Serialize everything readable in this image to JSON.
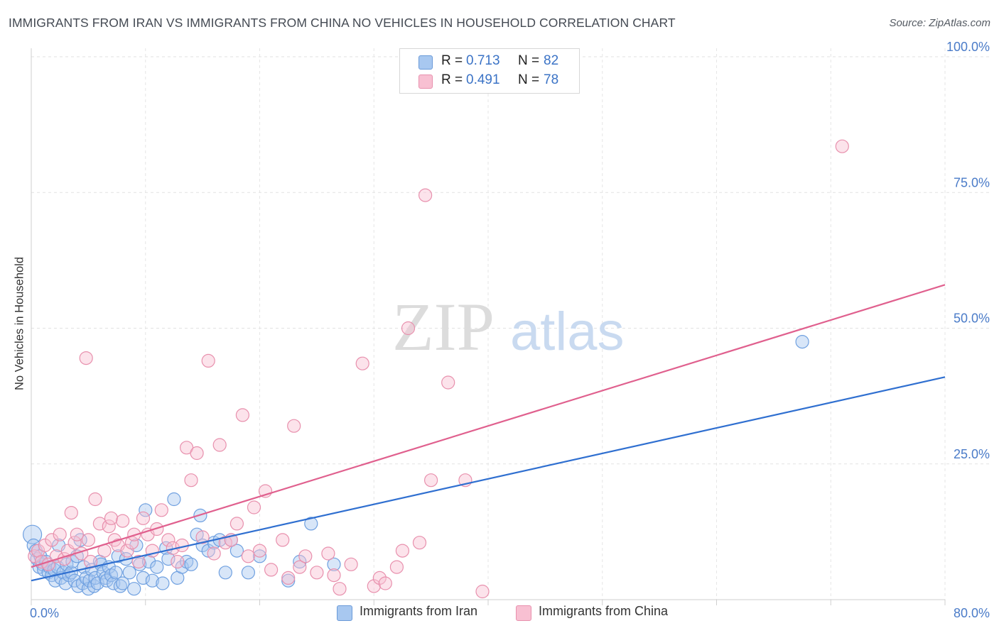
{
  "title": "IMMIGRANTS FROM IRAN VS IMMIGRANTS FROM CHINA NO VEHICLES IN HOUSEHOLD CORRELATION CHART",
  "source": "Source: ZipAtlas.com",
  "watermark": {
    "zip": "ZIP",
    "atlas": "atlas"
  },
  "legend_top": [
    {
      "r_label": "R =",
      "r_value": "0.713",
      "n_label": "N =",
      "n_value": "82",
      "color": "#a8c8f0",
      "border": "#6a9ad8"
    },
    {
      "r_label": "R =",
      "r_value": "0.491",
      "n_label": "N =",
      "n_value": "78",
      "color": "#f8c0d2",
      "border": "#e890ad"
    }
  ],
  "chart_data": {
    "type": "scatter",
    "title": "IMMIGRANTS FROM IRAN VS IMMIGRANTS FROM CHINA NO VEHICLES IN HOUSEHOLD CORRELATION CHART",
    "xlabel": "",
    "ylabel": "No Vehicles in Household",
    "xlim": [
      0,
      80
    ],
    "ylim": [
      0,
      100
    ],
    "x_tick_labels": [
      "0.0%",
      "80.0%"
    ],
    "y_tick_labels": [
      "25.0%",
      "50.0%",
      "75.0%",
      "100.0%"
    ],
    "y_ticks": [
      25,
      50,
      75,
      100
    ],
    "grid": true,
    "legend_position": "bottom",
    "series": [
      {
        "name": "Immigrants from Iran",
        "color": "#6fa0e0",
        "fill": "#a8c8f0",
        "line_color": "#2f6fd0",
        "trend": [
          [
            0,
            3.5
          ],
          [
            80,
            41
          ]
        ],
        "points": [
          [
            0.1,
            12
          ],
          [
            0.2,
            10
          ],
          [
            0.4,
            9
          ],
          [
            0.5,
            7.5
          ],
          [
            0.7,
            6
          ],
          [
            0.8,
            8
          ],
          [
            1.0,
            6.5
          ],
          [
            1.1,
            5.5
          ],
          [
            1.3,
            7
          ],
          [
            1.5,
            5
          ],
          [
            1.6,
            6
          ],
          [
            1.8,
            4.5
          ],
          [
            2.0,
            5.5
          ],
          [
            2.1,
            3.5
          ],
          [
            2.3,
            6
          ],
          [
            2.4,
            10
          ],
          [
            2.6,
            4
          ],
          [
            2.8,
            5
          ],
          [
            3.0,
            3
          ],
          [
            3.1,
            6.5
          ],
          [
            3.3,
            4.5
          ],
          [
            3.5,
            5
          ],
          [
            3.6,
            7
          ],
          [
            3.8,
            3.5
          ],
          [
            4.0,
            8
          ],
          [
            4.1,
            2.5
          ],
          [
            4.3,
            11
          ],
          [
            4.5,
            3
          ],
          [
            4.6,
            6
          ],
          [
            4.8,
            4
          ],
          [
            5.0,
            2
          ],
          [
            5.1,
            3.5
          ],
          [
            5.3,
            5.5
          ],
          [
            5.5,
            2.5
          ],
          [
            5.6,
            4
          ],
          [
            5.8,
            3
          ],
          [
            6.0,
            7
          ],
          [
            6.1,
            6.5
          ],
          [
            6.3,
            5
          ],
          [
            6.5,
            4
          ],
          [
            6.6,
            3.5
          ],
          [
            6.8,
            6
          ],
          [
            7.0,
            4.5
          ],
          [
            7.2,
            3
          ],
          [
            7.4,
            5
          ],
          [
            7.6,
            8
          ],
          [
            7.8,
            2.5
          ],
          [
            8.0,
            3
          ],
          [
            8.3,
            7.5
          ],
          [
            8.6,
            5
          ],
          [
            9.0,
            2
          ],
          [
            9.2,
            10
          ],
          [
            9.5,
            6.5
          ],
          [
            9.8,
            4
          ],
          [
            10.0,
            16.5
          ],
          [
            10.3,
            7
          ],
          [
            10.6,
            3.5
          ],
          [
            11.0,
            6
          ],
          [
            11.5,
            3
          ],
          [
            11.8,
            9.5
          ],
          [
            12.0,
            7.5
          ],
          [
            12.5,
            18.5
          ],
          [
            12.8,
            4
          ],
          [
            13.2,
            6
          ],
          [
            13.6,
            7
          ],
          [
            14.0,
            6.5
          ],
          [
            14.5,
            12
          ],
          [
            14.8,
            15.5
          ],
          [
            15.0,
            10
          ],
          [
            15.5,
            9
          ],
          [
            16.0,
            10.5
          ],
          [
            16.5,
            11
          ],
          [
            17.0,
            5
          ],
          [
            17.5,
            11
          ],
          [
            18.0,
            9
          ],
          [
            19.0,
            5
          ],
          [
            20.0,
            8
          ],
          [
            22.5,
            3.5
          ],
          [
            23.5,
            7
          ],
          [
            24.5,
            14
          ],
          [
            26.5,
            6.5
          ],
          [
            67.5,
            47.5
          ]
        ]
      },
      {
        "name": "Immigrants from China",
        "color": "#e890ad",
        "fill": "#f8c0d2",
        "line_color": "#e0608e",
        "trend": [
          [
            0,
            6
          ],
          [
            80,
            58
          ]
        ],
        "points": [
          [
            0.3,
            8
          ],
          [
            0.6,
            9
          ],
          [
            0.9,
            7
          ],
          [
            1.2,
            10
          ],
          [
            1.5,
            6.5
          ],
          [
            1.8,
            11
          ],
          [
            2.2,
            8
          ],
          [
            2.5,
            12
          ],
          [
            2.9,
            7.5
          ],
          [
            3.2,
            9
          ],
          [
            3.5,
            16
          ],
          [
            3.8,
            10.5
          ],
          [
            4.0,
            12
          ],
          [
            4.4,
            8.5
          ],
          [
            4.8,
            44.5
          ],
          [
            5.0,
            11
          ],
          [
            5.2,
            7
          ],
          [
            5.6,
            18.5
          ],
          [
            6.0,
            14
          ],
          [
            6.4,
            9
          ],
          [
            6.8,
            13.5
          ],
          [
            7.0,
            15
          ],
          [
            7.3,
            11
          ],
          [
            7.6,
            10
          ],
          [
            8.0,
            14.5
          ],
          [
            8.4,
            9
          ],
          [
            8.8,
            10.5
          ],
          [
            9.0,
            12
          ],
          [
            9.4,
            7
          ],
          [
            9.8,
            15
          ],
          [
            10.2,
            12
          ],
          [
            10.6,
            9
          ],
          [
            11.0,
            13
          ],
          [
            11.4,
            16.5
          ],
          [
            12.0,
            11
          ],
          [
            12.4,
            9.5
          ],
          [
            12.8,
            7
          ],
          [
            13.2,
            10
          ],
          [
            13.6,
            28
          ],
          [
            14.0,
            22
          ],
          [
            14.5,
            27
          ],
          [
            15.0,
            11.5
          ],
          [
            15.5,
            44
          ],
          [
            16.0,
            8.5
          ],
          [
            16.5,
            28.5
          ],
          [
            17.0,
            10.5
          ],
          [
            17.5,
            11
          ],
          [
            18.0,
            14
          ],
          [
            18.5,
            34
          ],
          [
            19.0,
            8
          ],
          [
            19.5,
            17
          ],
          [
            20.0,
            9
          ],
          [
            20.5,
            20
          ],
          [
            21.0,
            5.5
          ],
          [
            22.0,
            11
          ],
          [
            22.5,
            4
          ],
          [
            23.0,
            32
          ],
          [
            23.5,
            6
          ],
          [
            24.0,
            8
          ],
          [
            25.0,
            5
          ],
          [
            26.0,
            8.5
          ],
          [
            26.5,
            4.5
          ],
          [
            27.0,
            2
          ],
          [
            28.0,
            6.5
          ],
          [
            29.0,
            43.5
          ],
          [
            30.0,
            2.5
          ],
          [
            30.5,
            4
          ],
          [
            31.0,
            3
          ],
          [
            32.0,
            6
          ],
          [
            32.5,
            9
          ],
          [
            33.0,
            50
          ],
          [
            34.0,
            10.5
          ],
          [
            34.5,
            74.5
          ],
          [
            35.0,
            22
          ],
          [
            36.5,
            40
          ],
          [
            38.0,
            22
          ],
          [
            39.5,
            1.5
          ],
          [
            71.0,
            83.5
          ]
        ]
      }
    ]
  },
  "bottom_legend": [
    {
      "label": "Immigrants from Iran"
    },
    {
      "label": "Immigrants from China"
    }
  ]
}
